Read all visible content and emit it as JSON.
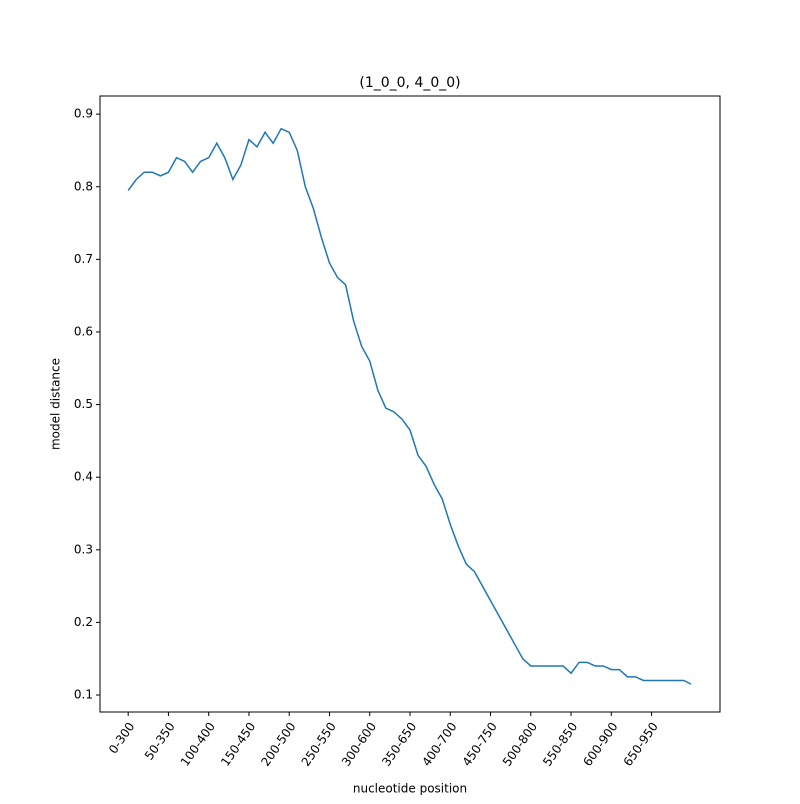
{
  "chart_data": {
    "type": "line",
    "title": "(1_0_0, 4_0_0)",
    "x_label": "nucleotide position",
    "y_label": "model distance",
    "x": [
      0,
      10,
      20,
      30,
      40,
      50,
      60,
      70,
      80,
      90,
      100,
      110,
      120,
      130,
      140,
      150,
      160,
      170,
      180,
      190,
      200,
      210,
      220,
      230,
      240,
      250,
      260,
      270,
      280,
      290,
      300,
      310,
      320,
      330,
      340,
      350,
      360,
      370,
      380,
      390,
      400,
      410,
      420,
      430,
      440,
      450,
      460,
      470,
      480,
      490,
      500,
      510,
      520,
      530,
      540,
      550,
      560,
      570,
      580,
      590,
      600,
      610,
      620,
      630,
      640,
      650,
      660,
      670,
      680,
      690,
      699
    ],
    "series": [
      {
        "name": "model distance",
        "color": "#1f77b4",
        "values": [
          0.795,
          0.81,
          0.82,
          0.82,
          0.815,
          0.82,
          0.84,
          0.835,
          0.82,
          0.835,
          0.84,
          0.86,
          0.84,
          0.81,
          0.83,
          0.865,
          0.855,
          0.875,
          0.86,
          0.88,
          0.875,
          0.85,
          0.8,
          0.77,
          0.73,
          0.695,
          0.675,
          0.665,
          0.615,
          0.58,
          0.56,
          0.52,
          0.495,
          0.49,
          0.48,
          0.465,
          0.43,
          0.415,
          0.39,
          0.37,
          0.335,
          0.305,
          0.28,
          0.27,
          0.25,
          0.23,
          0.21,
          0.19,
          0.17,
          0.15,
          0.14,
          0.14,
          0.14,
          0.14,
          0.14,
          0.13,
          0.145,
          0.145,
          0.14,
          0.14,
          0.135,
          0.135,
          0.125,
          0.125,
          0.12,
          0.12,
          0.12,
          0.12,
          0.12,
          0.12,
          0.115
        ]
      }
    ],
    "xlim": [
      -35,
      735
    ],
    "ylim": [
      0.0766,
      0.925
    ],
    "xticks": [
      {
        "value": 0,
        "label": "0-300"
      },
      {
        "value": 50,
        "label": "50-350"
      },
      {
        "value": 100,
        "label": "100-400"
      },
      {
        "value": 150,
        "label": "150-450"
      },
      {
        "value": 200,
        "label": "200-500"
      },
      {
        "value": 250,
        "label": "250-550"
      },
      {
        "value": 300,
        "label": "300-600"
      },
      {
        "value": 350,
        "label": "350-650"
      },
      {
        "value": 400,
        "label": "400-700"
      },
      {
        "value": 450,
        "label": "450-750"
      },
      {
        "value": 500,
        "label": "500-800"
      },
      {
        "value": 550,
        "label": "550-850"
      },
      {
        "value": 600,
        "label": "600-900"
      },
      {
        "value": 650,
        "label": "650-950"
      }
    ],
    "yticks": [
      0.1,
      0.2,
      0.3,
      0.4,
      0.5,
      0.6,
      0.7,
      0.8,
      0.9
    ]
  }
}
